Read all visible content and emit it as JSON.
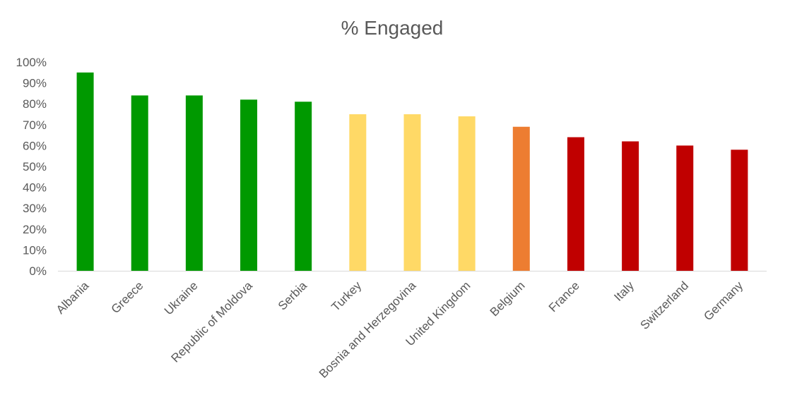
{
  "chart_data": {
    "type": "bar",
    "title": "% Engaged",
    "xlabel": "",
    "ylabel": "",
    "ylim": [
      0,
      100
    ],
    "y_ticks": [
      "0%",
      "10%",
      "20%",
      "30%",
      "40%",
      "50%",
      "60%",
      "70%",
      "80%",
      "90%",
      "100%"
    ],
    "y_tick_values": [
      0,
      10,
      20,
      30,
      40,
      50,
      60,
      70,
      80,
      90,
      100
    ],
    "grid": false,
    "categories": [
      "Albania",
      "Greece",
      "Ukraine",
      "Republic of Moldova",
      "Serbia",
      "Turkey",
      "Bosnia and Herzegovina",
      "United Kingdom",
      "Belgium",
      "France",
      "Italy",
      "Switzerland",
      "Germany"
    ],
    "values": [
      95,
      84,
      84,
      82,
      81,
      75,
      75,
      74,
      69,
      64,
      62,
      60,
      58
    ],
    "colors": [
      "#009900",
      "#009900",
      "#009900",
      "#009900",
      "#009900",
      "#FFD966",
      "#FFD966",
      "#FFD966",
      "#ED7D31",
      "#C00000",
      "#C00000",
      "#C00000",
      "#C00000"
    ],
    "axis_color": "#D9D9D9",
    "text_color": "#595959"
  }
}
